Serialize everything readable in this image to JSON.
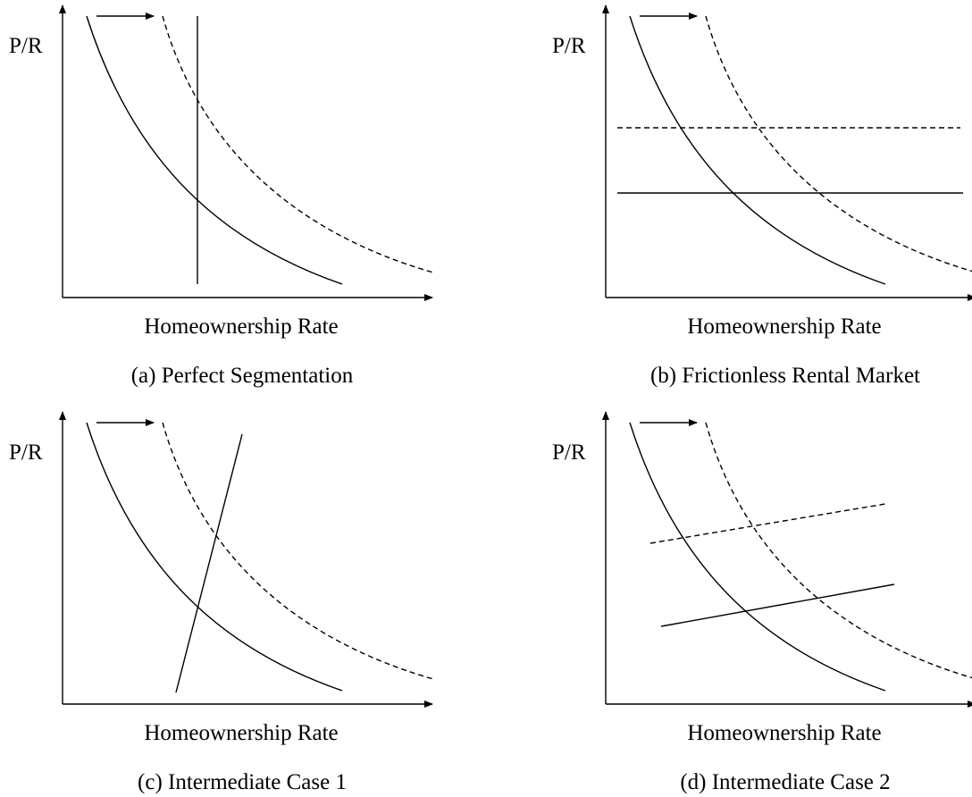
{
  "panels": [
    {
      "y_label": "P/R",
      "x_label": "Homeownership Rate",
      "caption": "(a) Perfect Segmentation"
    },
    {
      "y_label": "P/R",
      "x_label": "Homeownership Rate",
      "caption": "(b) Frictionless Rental Market"
    },
    {
      "y_label": "P/R",
      "x_label": "Homeownership Rate",
      "caption": "(c) Intermediate Case 1"
    },
    {
      "y_label": "P/R",
      "x_label": "Homeownership Rate",
      "caption": "(d) Intermediate Case 2"
    }
  ]
}
